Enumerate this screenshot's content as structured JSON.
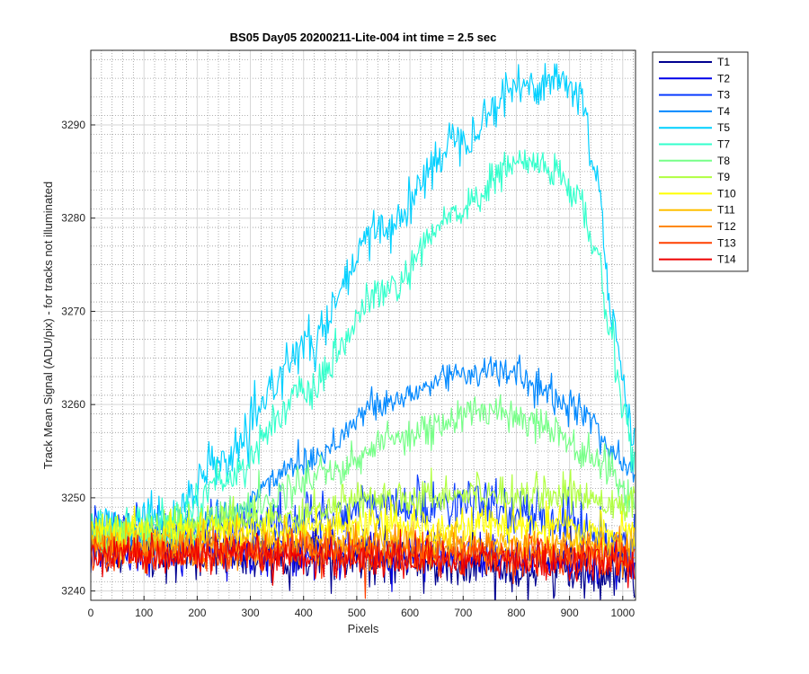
{
  "chart_data": {
    "type": "line",
    "title": "BS05 Day05 20200211-Lite-004 int time = 2.5 sec",
    "xlabel": "Pixels",
    "ylabel": "Track Mean Signal (ADU/pix) - for tracks not illuminated",
    "xlim": [
      0,
      1024
    ],
    "ylim": [
      3239,
      3298
    ],
    "xticks": [
      0,
      100,
      200,
      300,
      400,
      500,
      600,
      700,
      800,
      900,
      1000
    ],
    "yticks": [
      3240,
      3250,
      3260,
      3270,
      3280,
      3290
    ],
    "grid": "major and minor",
    "legend_location": "outside top-right",
    "series_model": "smooth baseline plus random noise; keypoints are [pixel, mean signal]",
    "series": [
      {
        "name": "T1",
        "color": "#00008f",
        "noise": 1.4,
        "keypoints": [
          [
            0,
            3245
          ],
          [
            200,
            3244
          ],
          [
            400,
            3243.5
          ],
          [
            600,
            3243
          ],
          [
            800,
            3242.5
          ],
          [
            1023,
            3242
          ]
        ]
      },
      {
        "name": "T2",
        "color": "#0000ea",
        "noise": 1.3,
        "keypoints": [
          [
            0,
            3245
          ],
          [
            300,
            3244.5
          ],
          [
            600,
            3244
          ],
          [
            1023,
            3243
          ]
        ]
      },
      {
        "name": "T3",
        "color": "#0a3cff",
        "noise": 1.3,
        "keypoints": [
          [
            0,
            3246
          ],
          [
            300,
            3247
          ],
          [
            550,
            3249
          ],
          [
            700,
            3249.5
          ],
          [
            850,
            3248
          ],
          [
            1023,
            3245
          ]
        ]
      },
      {
        "name": "T4",
        "color": "#0088ff",
        "noise": 0.9,
        "keypoints": [
          [
            0,
            3246
          ],
          [
            150,
            3246
          ],
          [
            250,
            3248
          ],
          [
            400,
            3254
          ],
          [
            550,
            3260
          ],
          [
            700,
            3263.5
          ],
          [
            780,
            3263.5
          ],
          [
            900,
            3260
          ],
          [
            1023,
            3253
          ]
        ]
      },
      {
        "name": "T5",
        "color": "#00d0ff",
        "noise": 1.2,
        "keypoints": [
          [
            0,
            3247
          ],
          [
            150,
            3248
          ],
          [
            250,
            3254
          ],
          [
            400,
            3266
          ],
          [
            550,
            3279
          ],
          [
            700,
            3289
          ],
          [
            800,
            3294
          ],
          [
            880,
            3295
          ],
          [
            920,
            3293
          ],
          [
            950,
            3285
          ],
          [
            980,
            3270
          ],
          [
            1000,
            3262
          ],
          [
            1023,
            3255
          ]
        ]
      },
      {
        "name": "T7",
        "color": "#33ffcc",
        "noise": 1.0,
        "keypoints": [
          [
            0,
            3247
          ],
          [
            150,
            3247.5
          ],
          [
            250,
            3252
          ],
          [
            400,
            3261
          ],
          [
            550,
            3272
          ],
          [
            700,
            3281
          ],
          [
            800,
            3286
          ],
          [
            860,
            3285.5
          ],
          [
            920,
            3282
          ],
          [
            950,
            3276
          ],
          [
            980,
            3267
          ],
          [
            1000,
            3260
          ],
          [
            1023,
            3254
          ]
        ]
      },
      {
        "name": "T8",
        "color": "#77ff88",
        "noise": 1.0,
        "keypoints": [
          [
            0,
            3246
          ],
          [
            150,
            3246
          ],
          [
            300,
            3249
          ],
          [
            450,
            3253
          ],
          [
            600,
            3257
          ],
          [
            760,
            3259.5
          ],
          [
            850,
            3258
          ],
          [
            950,
            3254
          ],
          [
            1023,
            3250
          ]
        ]
      },
      {
        "name": "T9",
        "color": "#b0ff40",
        "noise": 1.0,
        "keypoints": [
          [
            0,
            3246
          ],
          [
            300,
            3247.5
          ],
          [
            550,
            3250
          ],
          [
            700,
            3250.5
          ],
          [
            850,
            3250.5
          ],
          [
            1023,
            3249.5
          ]
        ]
      },
      {
        "name": "T10",
        "color": "#ffff00",
        "noise": 1.0,
        "keypoints": [
          [
            0,
            3246
          ],
          [
            300,
            3246.5
          ],
          [
            600,
            3247
          ],
          [
            800,
            3247
          ],
          [
            1023,
            3246
          ]
        ]
      },
      {
        "name": "T11",
        "color": "#ffc000",
        "noise": 1.0,
        "keypoints": [
          [
            0,
            3245
          ],
          [
            400,
            3245.5
          ],
          [
            700,
            3245
          ],
          [
            1023,
            3245
          ]
        ]
      },
      {
        "name": "T12",
        "color": "#ff8800",
        "noise": 1.0,
        "keypoints": [
          [
            0,
            3244.5
          ],
          [
            500,
            3244.5
          ],
          [
            1023,
            3244
          ]
        ]
      },
      {
        "name": "T13",
        "color": "#ff4000",
        "noise": 1.0,
        "keypoints": [
          [
            0,
            3244
          ],
          [
            500,
            3244
          ],
          [
            1023,
            3243.5
          ]
        ]
      },
      {
        "name": "T14",
        "color": "#ee0000",
        "noise": 1.0,
        "keypoints": [
          [
            0,
            3244
          ],
          [
            500,
            3243.5
          ],
          [
            1023,
            3243
          ]
        ]
      }
    ]
  }
}
